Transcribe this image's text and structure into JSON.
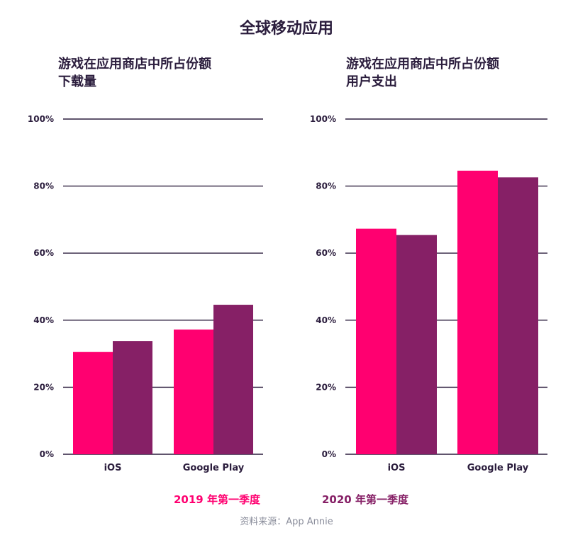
{
  "title": "全球移动应用",
  "legend": [
    {
      "label": "2019 年第一季度",
      "color": "#ff0070"
    },
    {
      "label": "2020 年第一季度",
      "color": "#862066"
    }
  ],
  "source": {
    "label": "资料来源：",
    "value": "App Annie"
  },
  "colors": {
    "gridline": "#2b1d3d",
    "text": "#2b1d3d",
    "source_text": "#8a8d9b"
  },
  "chart_data": [
    {
      "type": "bar",
      "title_lines": [
        "游戏在应用商店中所占份额",
        "下载量"
      ],
      "categories": [
        "iOS",
        "Google Play"
      ],
      "series": [
        {
          "name": "2019 年第一季度",
          "values": [
            30.5,
            37.2
          ]
        },
        {
          "name": "2020 年第一季度",
          "values": [
            33.8,
            44.6
          ]
        }
      ],
      "ylim": [
        0,
        100
      ],
      "yticks": [
        "0%",
        "20%",
        "40%",
        "60%",
        "80%",
        "100%"
      ],
      "grid": true
    },
    {
      "type": "bar",
      "title_lines": [
        "游戏在应用商店中所占份额",
        "用户支出"
      ],
      "categories": [
        "iOS",
        "Google Play"
      ],
      "series": [
        {
          "name": "2019 年第一季度",
          "values": [
            67.3,
            84.6
          ]
        },
        {
          "name": "2020 年第一季度",
          "values": [
            65.4,
            82.6
          ]
        }
      ],
      "ylim": [
        0,
        100
      ],
      "yticks": [
        "0%",
        "20%",
        "40%",
        "60%",
        "80%",
        "100%"
      ],
      "grid": true
    }
  ]
}
